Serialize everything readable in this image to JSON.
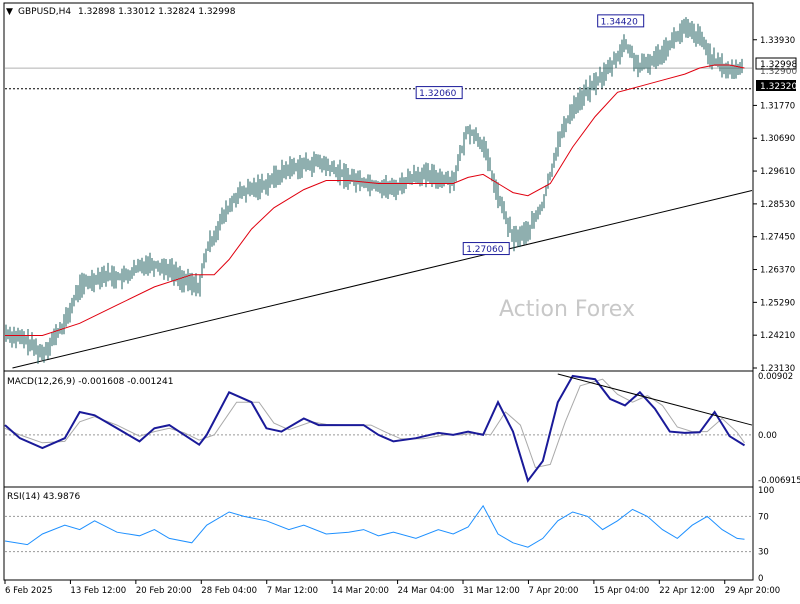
{
  "header": {
    "symbol": "GBPUSD,H4",
    "ohlc": "1.32898 1.33012 1.32824 1.32998"
  },
  "watermark": "Action Forex",
  "price_tags": {
    "current": "1.32998",
    "line": "1.32320",
    "hidden": "1.32900"
  },
  "chart_data": [
    {
      "type": "line",
      "name": "price",
      "x_ticks": [
        "6 Feb 2025",
        "13 Feb 12:00",
        "20 Feb 20:00",
        "28 Feb 04:00",
        "7 Mar 12:00",
        "14 Mar 20:00",
        "24 Mar 04:00",
        "31 Mar 12:00",
        "7 Apr 20:00",
        "15 Apr 04:00",
        "22 Apr 12:00",
        "29 Apr 20:00"
      ],
      "y_ticks": [
        "1.33930",
        "1.31770",
        "1.30690",
        "1.29610",
        "1.28530",
        "1.27450",
        "1.26370",
        "1.25290",
        "1.24210",
        "1.23130"
      ],
      "ylim": [
        1.2313,
        1.3458
      ],
      "annotations": [
        {
          "label": "1.34420",
          "x": 0.855,
          "value": 1.3442
        },
        {
          "label": "1.32060",
          "x": 0.612,
          "value": 1.3206
        },
        {
          "label": "1.27060",
          "x": 0.675,
          "value": 1.2706
        }
      ],
      "horizontal_lines": [
        1.32998,
        1.3232
      ],
      "trendline": [
        {
          "x": 0.01,
          "value": 1.2313
        },
        {
          "x": 1.0,
          "value": 1.2897
        }
      ],
      "series": [
        {
          "name": "close",
          "x": [
            0,
            0.03,
            0.05,
            0.08,
            0.1,
            0.13,
            0.16,
            0.19,
            0.22,
            0.24,
            0.26,
            0.27,
            0.29,
            0.31,
            0.35,
            0.38,
            0.42,
            0.46,
            0.49,
            0.52,
            0.55,
            0.58,
            0.6,
            0.62,
            0.64,
            0.66,
            0.68,
            0.7,
            0.72,
            0.74,
            0.76,
            0.79,
            0.81,
            0.83,
            0.85,
            0.87,
            0.89,
            0.91,
            0.93,
            0.95,
            0.97,
            0.99
          ],
          "y": [
            1.243,
            1.24,
            1.236,
            1.246,
            1.258,
            1.262,
            1.261,
            1.266,
            1.264,
            1.26,
            1.258,
            1.27,
            1.28,
            1.288,
            1.292,
            1.297,
            1.299,
            1.294,
            1.292,
            1.29,
            1.295,
            1.294,
            1.293,
            1.31,
            1.305,
            1.288,
            1.274,
            1.276,
            1.285,
            1.305,
            1.317,
            1.325,
            1.33,
            1.338,
            1.33,
            1.333,
            1.338,
            1.343,
            1.34,
            1.332,
            1.329,
            1.33
          ]
        },
        {
          "name": "MA",
          "color": "#e0000f",
          "x": [
            0,
            0.05,
            0.1,
            0.15,
            0.2,
            0.25,
            0.28,
            0.3,
            0.33,
            0.36,
            0.4,
            0.43,
            0.46,
            0.5,
            0.55,
            0.6,
            0.62,
            0.64,
            0.66,
            0.68,
            0.7,
            0.73,
            0.76,
            0.79,
            0.82,
            0.85,
            0.88,
            0.91,
            0.93,
            0.95,
            0.97,
            0.99
          ],
          "y": [
            1.242,
            1.242,
            1.246,
            1.252,
            1.258,
            1.262,
            1.262,
            1.267,
            1.277,
            1.284,
            1.29,
            1.293,
            1.293,
            1.292,
            1.292,
            1.292,
            1.294,
            1.295,
            1.292,
            1.289,
            1.288,
            1.292,
            1.304,
            1.314,
            1.322,
            1.324,
            1.326,
            1.328,
            1.33,
            1.331,
            1.331,
            1.33
          ]
        }
      ]
    },
    {
      "type": "line",
      "name": "MACD(12,26,9)",
      "header_text": "MACD(12,26,9) -0.001608 -0.001241",
      "y_ticks": [
        "0.00902",
        "0.00",
        "-0.006915"
      ],
      "ylim": [
        -0.0075,
        0.0093
      ],
      "series": [
        {
          "name": "macd",
          "color": "#1a1a99",
          "x": [
            0,
            0.02,
            0.05,
            0.08,
            0.1,
            0.12,
            0.15,
            0.18,
            0.2,
            0.22,
            0.24,
            0.26,
            0.27,
            0.3,
            0.33,
            0.35,
            0.37,
            0.4,
            0.42,
            0.45,
            0.48,
            0.5,
            0.52,
            0.55,
            0.58,
            0.6,
            0.62,
            0.64,
            0.66,
            0.68,
            0.7,
            0.72,
            0.74,
            0.76,
            0.79,
            0.81,
            0.83,
            0.85,
            0.87,
            0.89,
            0.91,
            0.93,
            0.95,
            0.97,
            0.99
          ],
          "y": [
            0.0015,
            -0.0005,
            -0.002,
            -0.0005,
            0.0035,
            0.003,
            0.001,
            -0.001,
            0.001,
            0.0015,
            0.0,
            -0.0015,
            0.0,
            0.0065,
            0.005,
            0.001,
            0.0005,
            0.0025,
            0.0015,
            0.0015,
            0.0015,
            0.0,
            -0.001,
            -0.0005,
            0.0003,
            0.0,
            0.0005,
            0.0,
            0.005,
            0.0005,
            -0.007,
            -0.004,
            0.005,
            0.009,
            0.0085,
            0.0055,
            0.0045,
            0.0065,
            0.004,
            0.0005,
            0.0003,
            0.0004,
            0.0035,
            -0.0002,
            -0.0016
          ]
        },
        {
          "name": "signal",
          "color": "#aaaaaa",
          "x": [
            0,
            0.02,
            0.05,
            0.08,
            0.1,
            0.12,
            0.15,
            0.18,
            0.2,
            0.22,
            0.24,
            0.26,
            0.28,
            0.31,
            0.34,
            0.36,
            0.38,
            0.41,
            0.43,
            0.46,
            0.49,
            0.51,
            0.53,
            0.56,
            0.59,
            0.61,
            0.63,
            0.65,
            0.67,
            0.69,
            0.71,
            0.73,
            0.75,
            0.77,
            0.8,
            0.82,
            0.84,
            0.86,
            0.88,
            0.9,
            0.92,
            0.94,
            0.96,
            0.98,
            0.99
          ],
          "y": [
            0.001,
            0.0,
            -0.0012,
            -0.001,
            0.002,
            0.0028,
            0.0015,
            -0.0002,
            0.0005,
            0.001,
            0.0003,
            -0.0008,
            0.0,
            0.005,
            0.005,
            0.0018,
            0.0008,
            0.002,
            0.0016,
            0.0015,
            0.0015,
            0.0004,
            -0.0006,
            -0.0006,
            0.0,
            0.0,
            0.0003,
            0.0,
            0.0035,
            0.0015,
            -0.005,
            -0.0045,
            0.002,
            0.0075,
            0.0085,
            0.0062,
            0.005,
            0.006,
            0.0045,
            0.0012,
            0.0005,
            0.0005,
            0.0025,
            0.0004,
            -0.0012
          ]
        }
      ],
      "trendline": [
        {
          "x": 0.74,
          "value": 0.0093
        },
        {
          "x": 1.0,
          "value": 0.0015
        }
      ]
    },
    {
      "type": "line",
      "name": "RSI(14)",
      "header_text": "RSI(14) 43.9876",
      "y_ticks": [
        "100",
        "70",
        "30",
        "0"
      ],
      "ylim": [
        0,
        100
      ],
      "series": [
        {
          "name": "rsi",
          "color": "#1e90ff",
          "x": [
            0,
            0.03,
            0.05,
            0.08,
            0.1,
            0.12,
            0.15,
            0.18,
            0.2,
            0.22,
            0.25,
            0.27,
            0.3,
            0.32,
            0.35,
            0.38,
            0.4,
            0.43,
            0.46,
            0.48,
            0.5,
            0.52,
            0.55,
            0.58,
            0.6,
            0.62,
            0.64,
            0.66,
            0.68,
            0.7,
            0.72,
            0.74,
            0.76,
            0.78,
            0.8,
            0.82,
            0.84,
            0.86,
            0.88,
            0.9,
            0.92,
            0.94,
            0.96,
            0.98,
            0.99
          ],
          "y": [
            42,
            38,
            50,
            60,
            55,
            65,
            52,
            48,
            55,
            45,
            40,
            60,
            75,
            70,
            65,
            55,
            60,
            50,
            52,
            55,
            48,
            52,
            45,
            55,
            50,
            58,
            82,
            50,
            40,
            35,
            45,
            65,
            75,
            70,
            55,
            65,
            78,
            70,
            55,
            45,
            60,
            70,
            55,
            45,
            44
          ]
        }
      ],
      "levels": [
        70,
        30
      ]
    }
  ]
}
